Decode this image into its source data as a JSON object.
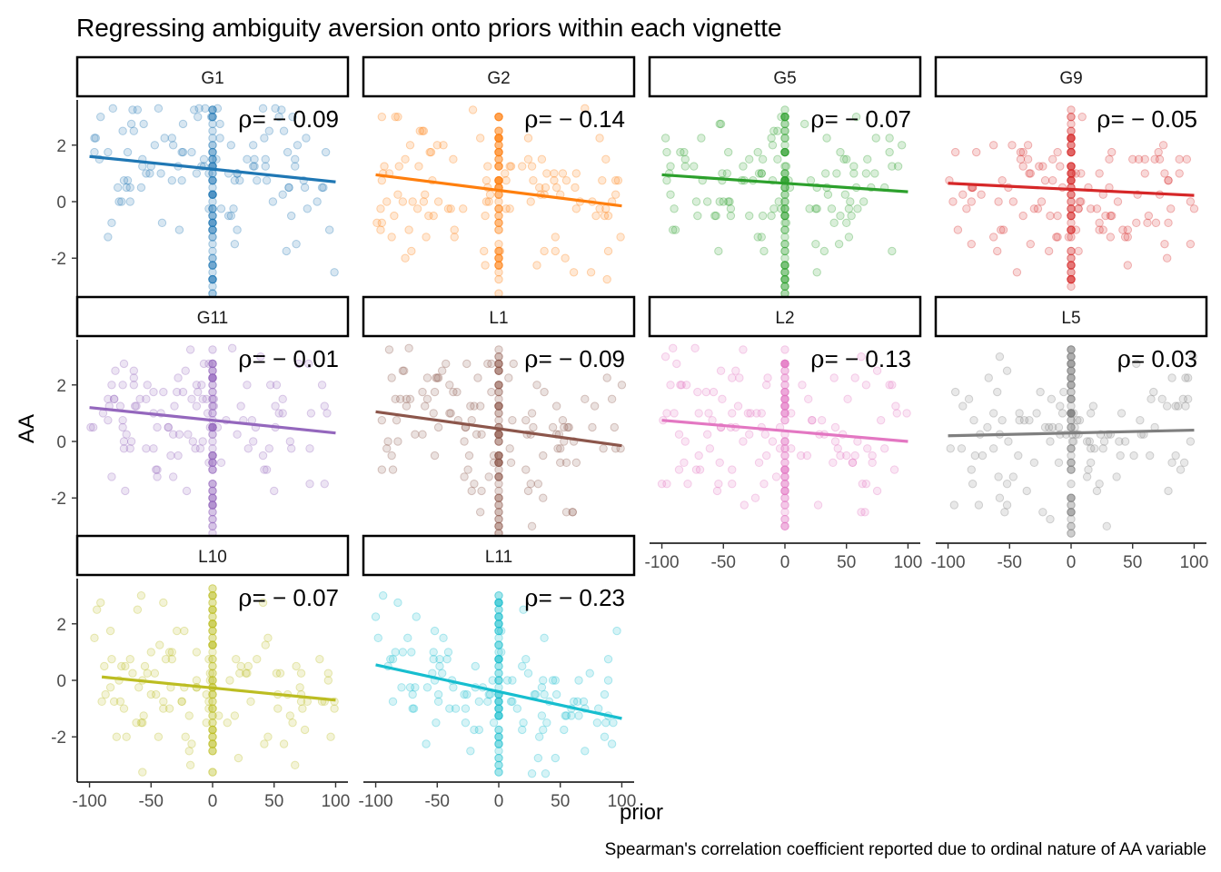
{
  "chart_data": {
    "type": "scatter",
    "title": "Regressing ambiguity aversion onto priors within each vignette",
    "xlabel": "prior",
    "ylabel": "AA",
    "caption": "Spearman's correlation coefficient reported due to ordinal nature of AA variable",
    "xlim": [
      -110,
      110
    ],
    "ylim": [
      -3.6,
      3.6
    ],
    "x_ticks": [
      -100,
      -50,
      0,
      50,
      100
    ],
    "x_tick_labels": [
      "-100",
      "-50",
      "0",
      "50",
      "100"
    ],
    "y_ticks": [
      -2,
      0,
      2
    ],
    "y_tick_labels": [
      "-2",
      "0",
      "2"
    ],
    "grid": false,
    "legend": "none",
    "rho_symbol": "ρ",
    "panels": [
      {
        "name": "G1",
        "color": "#1f77b4",
        "rho": "= − 0.09",
        "fit_x": [
          -100,
          100
        ],
        "fit_y": [
          1.6,
          0.7
        ]
      },
      {
        "name": "G2",
        "color": "#ff7f0e",
        "rho": "= − 0.14",
        "fit_x": [
          -100,
          100
        ],
        "fit_y": [
          0.95,
          -0.15
        ]
      },
      {
        "name": "G5",
        "color": "#2ca02c",
        "rho": "= − 0.07",
        "fit_x": [
          -100,
          100
        ],
        "fit_y": [
          0.95,
          0.35
        ]
      },
      {
        "name": "G9",
        "color": "#d62728",
        "rho": "= − 0.05",
        "fit_x": [
          -100,
          100
        ],
        "fit_y": [
          0.65,
          0.22
        ]
      },
      {
        "name": "G11",
        "color": "#9467bd",
        "rho": "= − 0.01",
        "fit_x": [
          -100,
          100
        ],
        "fit_y": [
          1.2,
          0.3
        ]
      },
      {
        "name": "L1",
        "color": "#8c564b",
        "rho": "= − 0.09",
        "fit_x": [
          -100,
          100
        ],
        "fit_y": [
          1.05,
          -0.15
        ]
      },
      {
        "name": "L2",
        "color": "#e377c2",
        "rho": "= − 0.13",
        "fit_x": [
          -100,
          100
        ],
        "fit_y": [
          0.75,
          0.0
        ]
      },
      {
        "name": "L5",
        "color": "#7f7f7f",
        "rho": "= 0.03",
        "fit_x": [
          -100,
          100
        ],
        "fit_y": [
          0.2,
          0.4
        ]
      },
      {
        "name": "L10",
        "color": "#bcbd22",
        "rho": "= − 0.07",
        "fit_x": [
          -90,
          100
        ],
        "fit_y": [
          0.12,
          -0.7
        ]
      },
      {
        "name": "L11",
        "color": "#17becf",
        "rho": "= − 0.23",
        "fit_x": [
          -100,
          100
        ],
        "fit_y": [
          0.55,
          -1.35
        ]
      }
    ]
  }
}
